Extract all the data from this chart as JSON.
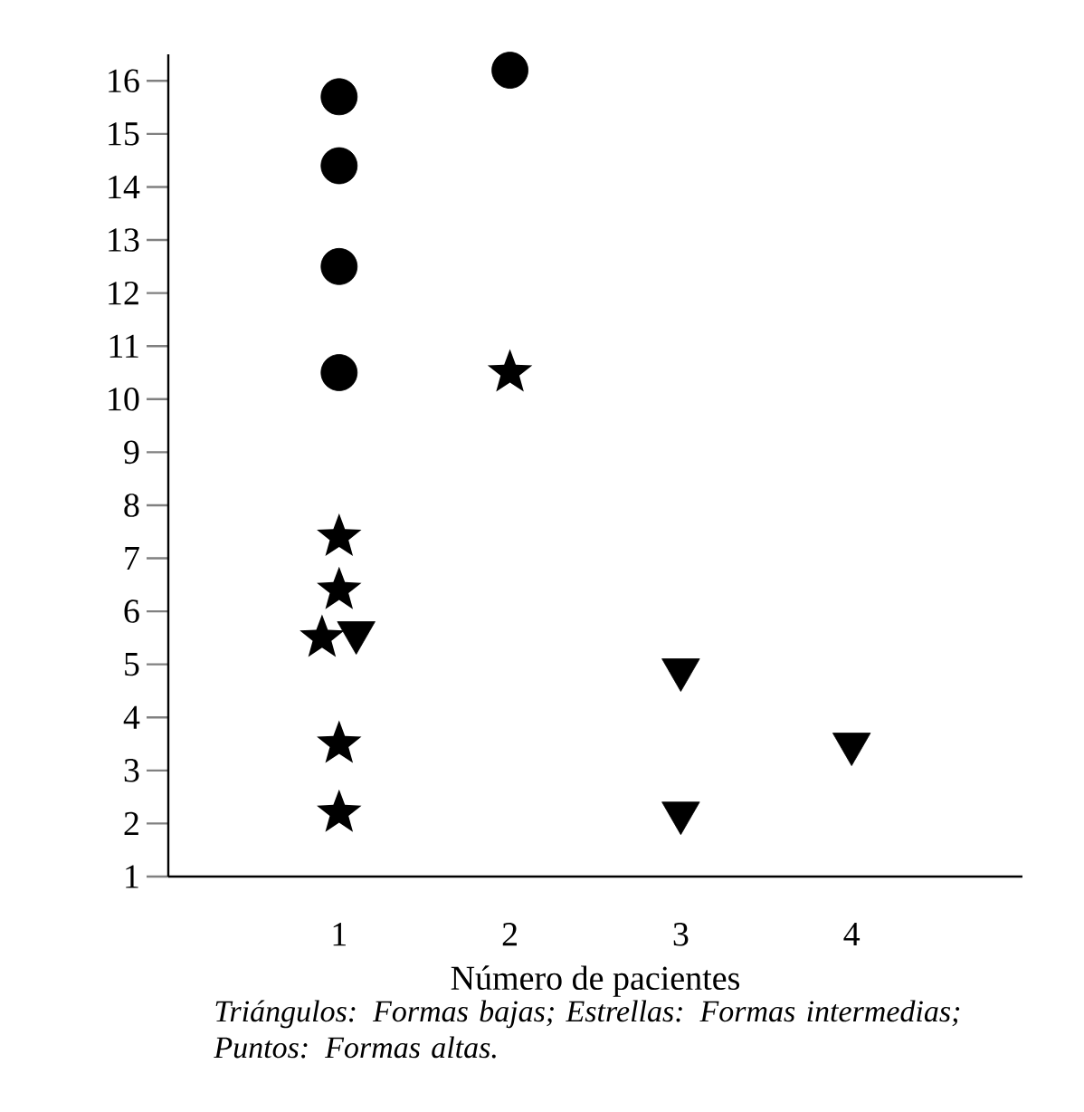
{
  "chart_data": {
    "type": "scatter",
    "xlabel": "Número de pacientes",
    "annotations": [
      "Triángulos: Formas bajas; Estrellas: Formas intermedias; Puntos: Formas altas."
    ],
    "series": [
      {
        "color": "#000000",
        "marker": "circle",
        "x": [
          1,
          1,
          1,
          1,
          2
        ],
        "values": [
          15.7,
          14.4,
          12.5,
          10.5,
          16.2
        ]
      },
      {
        "color": "#000000",
        "marker": "star",
        "x": [
          1,
          1,
          0.9,
          1,
          1,
          2
        ],
        "values": [
          7.4,
          6.4,
          5.5,
          3.5,
          2.2,
          10.5
        ]
      },
      {
        "color": "#000000",
        "marker": "triangle",
        "x": [
          1.1,
          3,
          3,
          4
        ],
        "values": [
          5.6,
          4.9,
          2.2,
          3.5
        ]
      }
    ],
    "xlim": [
      0,
      5
    ],
    "ylim": [
      1,
      16.5
    ],
    "xticks": [
      1,
      2,
      3,
      4
    ],
    "yticks": [
      1,
      2,
      3,
      4,
      5,
      6,
      7,
      8,
      9,
      10,
      11,
      12,
      13,
      14,
      15,
      16
    ],
    "grid": false
  }
}
